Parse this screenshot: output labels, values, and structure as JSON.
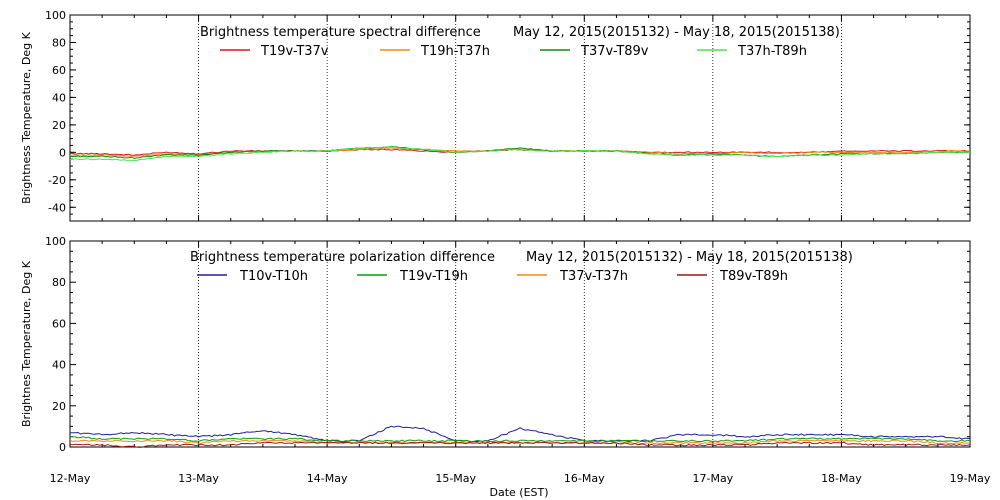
{
  "figure": {
    "xlabel": "Date (EST)"
  },
  "chart_data": [
    {
      "type": "line",
      "title": "Brightness temperature spectral difference",
      "date_range": "May 12, 2015(2015132) - May 18, 2015(2015138)",
      "ylabel": "Brightness Temperature, Deg K",
      "xlim": [
        "2015-05-12",
        "2015-05-19"
      ],
      "ylim": [
        -50,
        100
      ],
      "yticks": [
        -40,
        -20,
        0,
        20,
        40,
        60,
        80,
        100
      ],
      "xticks": [
        "12-May",
        "13-May",
        "14-May",
        "15-May",
        "16-May",
        "17-May",
        "18-May",
        "19-May"
      ],
      "grid": "vertical dotted lines at each day",
      "legend_position": "top",
      "series": [
        {
          "name": "T19v-T37v",
          "color": "#e0141e",
          "x": [
            "2015-05-12 00:00",
            "2015-05-12 06:00",
            "2015-05-12 12:00",
            "2015-05-12 18:00",
            "2015-05-13 00:00",
            "2015-05-13 06:00",
            "2015-05-13 12:00",
            "2015-05-13 18:00",
            "2015-05-14 00:00",
            "2015-05-14 06:00",
            "2015-05-14 12:00",
            "2015-05-14 18:00",
            "2015-05-15 00:00",
            "2015-05-15 06:00",
            "2015-05-15 12:00",
            "2015-05-15 18:00",
            "2015-05-16 00:00",
            "2015-05-16 06:00",
            "2015-05-16 12:00",
            "2015-05-16 18:00",
            "2015-05-17 00:00",
            "2015-05-17 06:00",
            "2015-05-17 12:00",
            "2015-05-17 18:00",
            "2015-05-18 00:00",
            "2015-05-18 06:00",
            "2015-05-18 12:00",
            "2015-05-18 18:00",
            "2015-05-19 00:00"
          ],
          "values": [
            -1,
            -1,
            -2,
            0,
            -1,
            1,
            1,
            1,
            1,
            2,
            2,
            1,
            0,
            1,
            2,
            1,
            1,
            1,
            0,
            0,
            0,
            0,
            0,
            0,
            1,
            1,
            1,
            1,
            1
          ]
        },
        {
          "name": "T19h-T37h",
          "color": "#f08c14",
          "x": [
            "2015-05-12 00:00",
            "2015-05-12 06:00",
            "2015-05-12 12:00",
            "2015-05-12 18:00",
            "2015-05-13 00:00",
            "2015-05-13 06:00",
            "2015-05-13 12:00",
            "2015-05-13 18:00",
            "2015-05-14 00:00",
            "2015-05-14 06:00",
            "2015-05-14 12:00",
            "2015-05-14 18:00",
            "2015-05-15 00:00",
            "2015-05-15 06:00",
            "2015-05-15 12:00",
            "2015-05-15 18:00",
            "2015-05-16 00:00",
            "2015-05-16 06:00",
            "2015-05-16 12:00",
            "2015-05-16 18:00",
            "2015-05-17 00:00",
            "2015-05-17 06:00",
            "2015-05-17 12:00",
            "2015-05-17 18:00",
            "2015-05-18 00:00",
            "2015-05-18 06:00",
            "2015-05-18 12:00",
            "2015-05-18 18:00",
            "2015-05-19 00:00"
          ],
          "values": [
            -2,
            -2,
            -3,
            -1,
            -2,
            0,
            1,
            1,
            1,
            2,
            3,
            2,
            1,
            1,
            3,
            1,
            1,
            1,
            0,
            -1,
            -1,
            0,
            -1,
            0,
            0,
            0,
            0,
            1,
            1
          ]
        },
        {
          "name": "T37v-T89v",
          "color": "#108c10",
          "x": [
            "2015-05-12 00:00",
            "2015-05-12 06:00",
            "2015-05-12 12:00",
            "2015-05-12 18:00",
            "2015-05-13 00:00",
            "2015-05-13 06:00",
            "2015-05-13 12:00",
            "2015-05-13 18:00",
            "2015-05-14 00:00",
            "2015-05-14 06:00",
            "2015-05-14 12:00",
            "2015-05-14 18:00",
            "2015-05-15 00:00",
            "2015-05-15 06:00",
            "2015-05-15 12:00",
            "2015-05-15 18:00",
            "2015-05-16 00:00",
            "2015-05-16 06:00",
            "2015-05-16 12:00",
            "2015-05-16 18:00",
            "2015-05-17 00:00",
            "2015-05-17 06:00",
            "2015-05-17 12:00",
            "2015-05-17 18:00",
            "2015-05-18 00:00",
            "2015-05-18 06:00",
            "2015-05-18 12:00",
            "2015-05-18 18:00",
            "2015-05-19 00:00"
          ],
          "values": [
            -3,
            -3,
            -4,
            -2,
            -2,
            0,
            1,
            1,
            1,
            3,
            4,
            2,
            0,
            1,
            3,
            1,
            1,
            1,
            -1,
            -2,
            -1,
            -2,
            -3,
            -2,
            -1,
            -1,
            -1,
            0,
            0
          ]
        },
        {
          "name": "T37h-T89h",
          "color": "#50e050",
          "x": [
            "2015-05-12 00:00",
            "2015-05-12 06:00",
            "2015-05-12 12:00",
            "2015-05-12 18:00",
            "2015-05-13 00:00",
            "2015-05-13 06:00",
            "2015-05-13 12:00",
            "2015-05-13 18:00",
            "2015-05-14 00:00",
            "2015-05-14 06:00",
            "2015-05-14 12:00",
            "2015-05-14 18:00",
            "2015-05-15 00:00",
            "2015-05-15 06:00",
            "2015-05-15 12:00",
            "2015-05-15 18:00",
            "2015-05-16 00:00",
            "2015-05-16 06:00",
            "2015-05-16 12:00",
            "2015-05-16 18:00",
            "2015-05-17 00:00",
            "2015-05-17 06:00",
            "2015-05-17 12:00",
            "2015-05-17 18:00",
            "2015-05-18 00:00",
            "2015-05-18 06:00",
            "2015-05-18 12:00",
            "2015-05-18 18:00",
            "2015-05-19 00:00"
          ],
          "values": [
            -5,
            -5,
            -6,
            -3,
            -3,
            -1,
            0,
            1,
            1,
            3,
            4,
            2,
            0,
            1,
            2,
            1,
            1,
            1,
            -1,
            -2,
            -2,
            -2,
            -3,
            -2,
            -2,
            -1,
            -1,
            0,
            0
          ]
        }
      ]
    },
    {
      "type": "line",
      "title": "Brightness temperature polarization difference",
      "date_range": "May 12, 2015(2015132) - May 18, 2015(2015138)",
      "ylabel": "Brightnes Temperature, Deg K",
      "xlim": [
        "2015-05-12",
        "2015-05-19"
      ],
      "ylim": [
        0,
        100
      ],
      "yticks": [
        0,
        20,
        40,
        60,
        80,
        100
      ],
      "xticks": [
        "12-May",
        "13-May",
        "14-May",
        "15-May",
        "16-May",
        "17-May",
        "18-May",
        "19-May"
      ],
      "grid": "vertical dotted lines at each day",
      "legend_position": "top",
      "series": [
        {
          "name": "T10v-T10h",
          "color": "#1e1e9a",
          "x": [
            "2015-05-12 00:00",
            "2015-05-12 06:00",
            "2015-05-12 12:00",
            "2015-05-12 18:00",
            "2015-05-13 00:00",
            "2015-05-13 06:00",
            "2015-05-13 12:00",
            "2015-05-13 18:00",
            "2015-05-14 00:00",
            "2015-05-14 06:00",
            "2015-05-14 12:00",
            "2015-05-14 18:00",
            "2015-05-15 00:00",
            "2015-05-15 06:00",
            "2015-05-15 12:00",
            "2015-05-15 18:00",
            "2015-05-16 00:00",
            "2015-05-16 06:00",
            "2015-05-16 12:00",
            "2015-05-16 18:00",
            "2015-05-17 00:00",
            "2015-05-17 06:00",
            "2015-05-17 12:00",
            "2015-05-17 18:00",
            "2015-05-18 00:00",
            "2015-05-18 06:00",
            "2015-05-18 12:00",
            "2015-05-18 18:00",
            "2015-05-19 00:00"
          ],
          "values": [
            7,
            6,
            7,
            6,
            5,
            6,
            8,
            6,
            3,
            3,
            10,
            9,
            3,
            3,
            9,
            6,
            3,
            3,
            3,
            6,
            6,
            5,
            6,
            6,
            6,
            5,
            5,
            5,
            4
          ]
        },
        {
          "name": "T19v-T19h",
          "color": "#109c10",
          "x": [
            "2015-05-12 00:00",
            "2015-05-12 06:00",
            "2015-05-12 12:00",
            "2015-05-12 18:00",
            "2015-05-13 00:00",
            "2015-05-13 06:00",
            "2015-05-13 12:00",
            "2015-05-13 18:00",
            "2015-05-14 00:00",
            "2015-05-14 06:00",
            "2015-05-14 12:00",
            "2015-05-14 18:00",
            "2015-05-15 00:00",
            "2015-05-15 06:00",
            "2015-05-15 12:00",
            "2015-05-15 18:00",
            "2015-05-16 00:00",
            "2015-05-16 06:00",
            "2015-05-16 12:00",
            "2015-05-16 18:00",
            "2015-05-17 00:00",
            "2015-05-17 06:00",
            "2015-05-17 12:00",
            "2015-05-17 18:00",
            "2015-05-18 00:00",
            "2015-05-18 06:00",
            "2015-05-18 12:00",
            "2015-05-18 18:00",
            "2015-05-19 00:00"
          ],
          "values": [
            5,
            4,
            4,
            4,
            3,
            4,
            4,
            4,
            3,
            3,
            3,
            3,
            3,
            3,
            3,
            3,
            3,
            3,
            3,
            3,
            3,
            3,
            4,
            4,
            4,
            4,
            4,
            3,
            3
          ]
        },
        {
          "name": "T37v-T37h",
          "color": "#f08c14",
          "x": [
            "2015-05-12 00:00",
            "2015-05-12 06:00",
            "2015-05-12 12:00",
            "2015-05-12 18:00",
            "2015-05-13 00:00",
            "2015-05-13 06:00",
            "2015-05-13 12:00",
            "2015-05-13 18:00",
            "2015-05-14 00:00",
            "2015-05-14 06:00",
            "2015-05-14 12:00",
            "2015-05-14 18:00",
            "2015-05-15 00:00",
            "2015-05-15 06:00",
            "2015-05-15 12:00",
            "2015-05-15 18:00",
            "2015-05-16 00:00",
            "2015-05-16 06:00",
            "2015-05-16 12:00",
            "2015-05-16 18:00",
            "2015-05-17 00:00",
            "2015-05-17 06:00",
            "2015-05-17 12:00",
            "2015-05-17 18:00",
            "2015-05-18 00:00",
            "2015-05-18 06:00",
            "2015-05-18 12:00",
            "2015-05-18 18:00",
            "2015-05-19 00:00"
          ],
          "values": [
            3,
            3,
            3,
            3,
            2,
            3,
            3,
            3,
            2,
            2,
            2,
            2,
            2,
            2,
            2,
            2,
            2,
            2,
            2,
            2,
            2,
            2,
            3,
            3,
            3,
            3,
            3,
            2,
            2
          ]
        },
        {
          "name": "T89v-T89h",
          "color": "#9c1a14",
          "x": [
            "2015-05-12 00:00",
            "2015-05-12 06:00",
            "2015-05-12 12:00",
            "2015-05-12 18:00",
            "2015-05-13 00:00",
            "2015-05-13 06:00",
            "2015-05-13 12:00",
            "2015-05-13 18:00",
            "2015-05-14 00:00",
            "2015-05-14 06:00",
            "2015-05-14 12:00",
            "2015-05-14 18:00",
            "2015-05-15 00:00",
            "2015-05-15 06:00",
            "2015-05-15 12:00",
            "2015-05-15 18:00",
            "2015-05-16 00:00",
            "2015-05-16 06:00",
            "2015-05-16 12:00",
            "2015-05-16 18:00",
            "2015-05-17 00:00",
            "2015-05-17 06:00",
            "2015-05-17 12:00",
            "2015-05-17 18:00",
            "2015-05-18 00:00",
            "2015-05-18 06:00",
            "2015-05-18 12:00",
            "2015-05-18 18:00",
            "2015-05-19 00:00"
          ],
          "values": [
            1,
            1,
            0,
            1,
            1,
            1,
            2,
            2,
            2,
            2,
            2,
            2,
            2,
            2,
            2,
            2,
            2,
            2,
            1,
            1,
            1,
            1,
            2,
            2,
            2,
            1,
            1,
            1,
            1
          ]
        }
      ]
    }
  ]
}
